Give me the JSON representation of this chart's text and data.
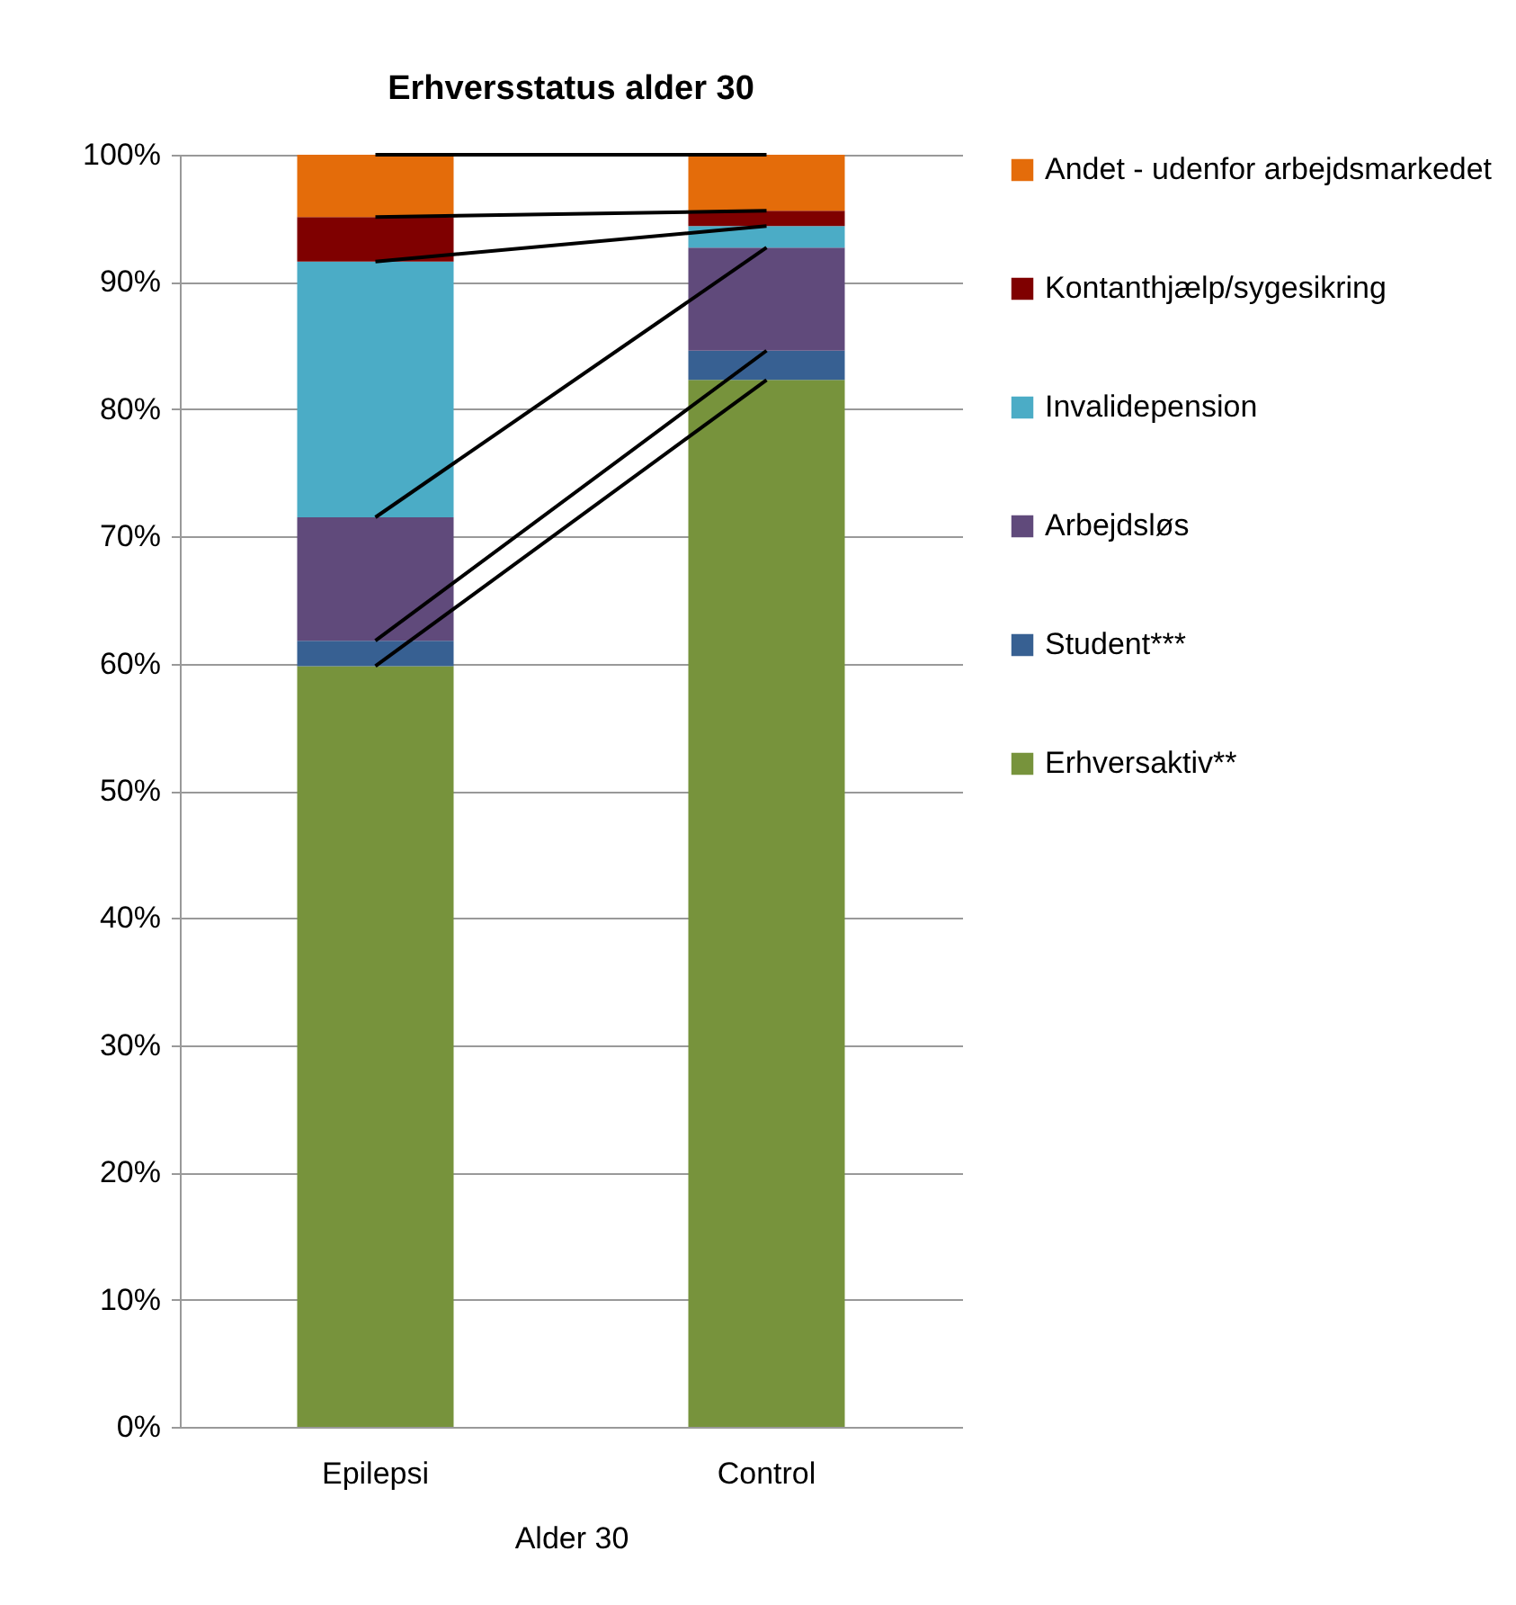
{
  "chart_data": {
    "type": "bar",
    "title": "Erhversstatus alder 30",
    "xlabel": "Alder 30",
    "categories": [
      "Epilepsi",
      "Control"
    ],
    "stacked": true,
    "legend": "right",
    "grid": "y",
    "ylim": [
      0,
      100
    ],
    "yticks": [
      {
        "value": 0,
        "label": "0%"
      },
      {
        "value": 10,
        "label": "10%"
      },
      {
        "value": 20,
        "label": "20%"
      },
      {
        "value": 30,
        "label": "30%"
      },
      {
        "value": 40,
        "label": "40%"
      },
      {
        "value": 50,
        "label": "50%"
      },
      {
        "value": 60,
        "label": "60%"
      },
      {
        "value": 70,
        "label": "70%"
      },
      {
        "value": 80,
        "label": "80%"
      },
      {
        "value": 90,
        "label": "90%"
      },
      {
        "value": 100,
        "label": "100%"
      }
    ],
    "series": [
      {
        "name": "Erhversaktiv**",
        "color": "#77933c",
        "values": [
          59.8,
          82.3
        ]
      },
      {
        "name": "Student***",
        "color": "#376092",
        "values": [
          2.0,
          2.3
        ]
      },
      {
        "name": "Arbejdsløs",
        "color": "#604a7b",
        "values": [
          9.7,
          8.1
        ]
      },
      {
        "name": "Invalidepension",
        "color": "#4bacc6",
        "values": [
          20.1,
          1.7
        ]
      },
      {
        "name": "Kontanthjælp/sygesikring",
        "color": "#7f0000",
        "values": [
          3.5,
          1.2
        ]
      },
      {
        "name": "Andet - udenfor arbejdsmarkedet",
        "color": "#e46c0a",
        "values": [
          4.9,
          4.4
        ]
      }
    ]
  }
}
